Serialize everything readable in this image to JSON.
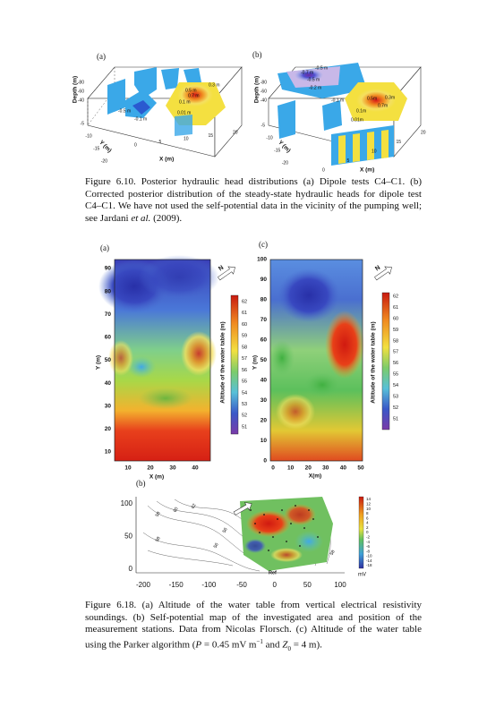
{
  "figure_610": {
    "panel_a": {
      "label": "(a)",
      "z_label": "Depth (m)",
      "y_label": "Y (m)",
      "x_label": "X (m)",
      "z_ticks": [
        "-80",
        "-60",
        "-40"
      ],
      "y_ticks": [
        "-5",
        "-10",
        "-15",
        "-20"
      ],
      "x_ticks": [
        "0",
        "5",
        "10",
        "15",
        "20"
      ],
      "contour_labels": [
        "0.3 m",
        "0.5 m",
        "0.7 m",
        "0.1 m",
        "0.01 m",
        "-0.5 m",
        "-0.1 m"
      ]
    },
    "panel_b": {
      "label": "(b)",
      "z_label": "Depth (m)",
      "y_label": "Y (m)",
      "x_label": "X (m)",
      "z_ticks": [
        "-80",
        "-60",
        "-40"
      ],
      "y_ticks": [
        "-5",
        "-10",
        "-15",
        "-20"
      ],
      "x_ticks": [
        "0",
        "5",
        "10",
        "15",
        "20"
      ],
      "contour_labels": [
        "-0.5 m",
        "-0.7 m",
        "-0.5 m",
        "-0.2 m",
        "-0.1 m",
        "0.5m",
        "0.3m",
        "0.7m",
        "0.1m",
        "0.01m"
      ]
    },
    "caption": {
      "label": "Figure 6.10.",
      "text": "Posterior hydraulic head distributions (a) Dipole tests C4–C1. (b) Corrected posterior distribution of the steady-state hydraulic heads for dipole test C4–C1. We have not used the self-potential data in the vicinity of the pumping well; see Jardani ",
      "italic": "et al.",
      "end": " (2009)."
    }
  },
  "figure_618": {
    "panel_a": {
      "label": "(a)",
      "y_label": "Y (m)",
      "x_label": "X (m)",
      "y_ticks": [
        "90",
        "80",
        "70",
        "60",
        "50",
        "40",
        "30",
        "20",
        "10"
      ],
      "x_ticks": [
        "10",
        "20",
        "30",
        "40"
      ],
      "colorbar_label": "Altitude of the water table (m)",
      "colorbar_ticks": [
        "62",
        "61",
        "60",
        "59",
        "58",
        "57",
        "56",
        "55",
        "54",
        "53",
        "52",
        "51"
      ]
    },
    "panel_c": {
      "label": "(c)",
      "y_label": "Y (m)",
      "x_label": "X(m)",
      "y_ticks": [
        "100",
        "90",
        "80",
        "70",
        "60",
        "50",
        "40",
        "30",
        "20",
        "10",
        "0"
      ],
      "x_ticks": [
        "0",
        "10",
        "20",
        "30",
        "40",
        "50"
      ],
      "colorbar_label": "Altitude of the water table (m)",
      "colorbar_ticks": [
        "62",
        "61",
        "60",
        "59",
        "58",
        "57",
        "56",
        "55",
        "54",
        "53",
        "52",
        "51"
      ]
    },
    "panel_b": {
      "label": "(b)",
      "y_ticks": [
        "100",
        "50",
        "0"
      ],
      "x_ticks": [
        "-200",
        "-150",
        "-100",
        "-50",
        "0",
        "50",
        "100"
      ],
      "contour_labels": [
        "58",
        "60",
        "62",
        "58",
        "56",
        "56",
        "58"
      ],
      "ref_label": "Ref",
      "colorbar_ticks": [
        "14",
        "12",
        "10",
        "8",
        "6",
        "4",
        "2",
        "0",
        "-2",
        "-4",
        "-6",
        "-8",
        "-10",
        "-14",
        "-18"
      ],
      "colorbar_unit": "mV"
    },
    "caption": {
      "label": "Figure 6.18.",
      "text": "(a) Altitude of the water table from vertical electrical resistivity soundings. (b) Self-potential map of the investigated area and position of the measurement stations. Data from Nicolas Florsch. (c) Altitude of the water table using the Parker algorithm (",
      "var_p": "P",
      "p_value": " = 0.45 mV m",
      "p_exp": "−1",
      "and": " and ",
      "var_z": "Z",
      "z_sub": "0",
      "z_value": " = 4 m)."
    }
  }
}
